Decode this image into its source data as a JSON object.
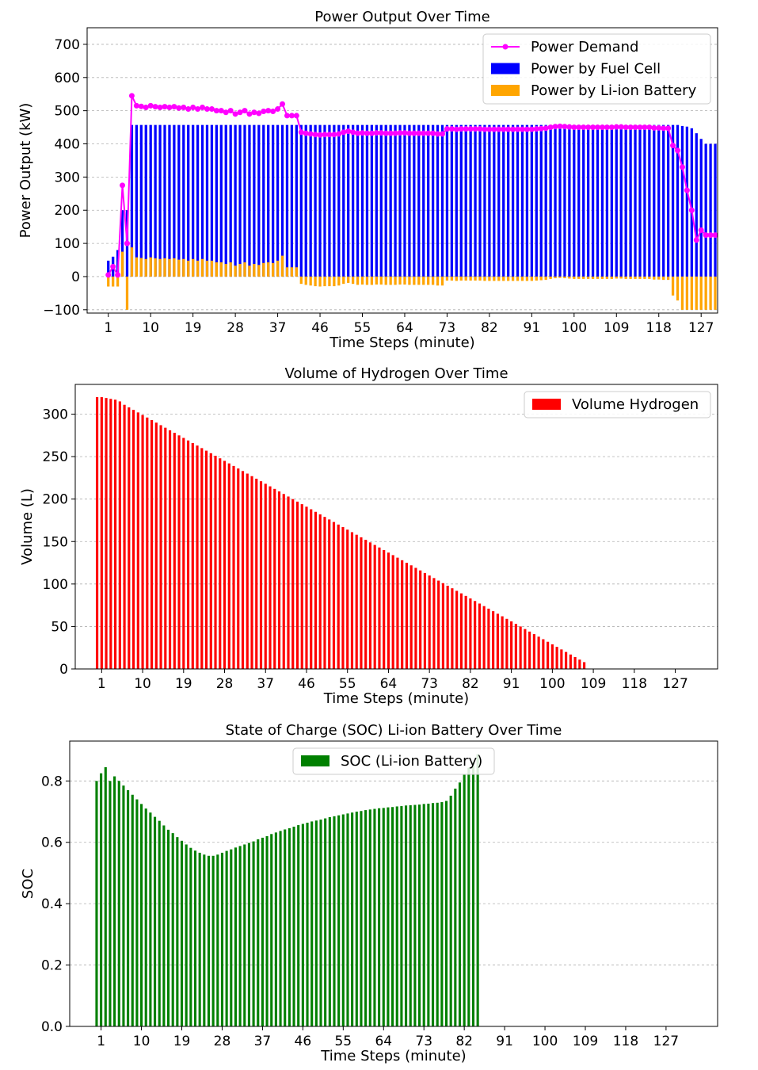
{
  "chart_data": [
    {
      "type": "bar",
      "title": "Power Output Over Time",
      "xlabel": "Time Steps (minute)",
      "ylabel": "Power Output (kW)",
      "ylim": [
        -110,
        750
      ],
      "xlim": [
        -3.5,
        130.5
      ],
      "yticks": [
        -100,
        0,
        100,
        200,
        300,
        400,
        500,
        600,
        700
      ],
      "xticks": [
        1,
        10,
        19,
        28,
        37,
        46,
        55,
        64,
        73,
        82,
        91,
        100,
        109,
        118,
        127
      ],
      "bar_x_start": 1,
      "bar_width": 0.55,
      "series": [
        {
          "name": "Power Demand",
          "kind": "line",
          "color": "#ff00ff",
          "x": [
            1,
            2,
            3,
            4,
            5,
            6,
            7,
            8,
            9,
            10,
            11,
            12,
            13,
            14,
            15,
            16,
            17,
            18,
            19,
            20,
            21,
            22,
            23,
            24,
            25,
            26,
            27,
            28,
            29,
            30,
            31,
            32,
            33,
            34,
            35,
            36,
            37,
            38,
            39,
            40,
            41,
            42,
            43,
            44,
            45,
            46,
            47,
            48,
            49,
            50,
            51,
            52,
            53,
            54,
            55,
            56,
            57,
            58,
            59,
            60,
            61,
            62,
            63,
            64,
            65,
            66,
            67,
            68,
            69,
            70,
            71,
            72,
            73,
            74,
            75,
            76,
            77,
            78,
            79,
            80,
            81,
            82,
            83,
            84,
            85,
            86,
            87,
            88,
            89,
            90,
            91,
            92,
            93,
            94,
            95,
            96,
            97,
            98,
            99,
            100,
            101,
            102,
            103,
            104,
            105,
            106,
            107,
            108,
            109,
            110,
            111,
            112,
            113,
            114,
            115,
            116,
            117,
            118,
            119,
            120,
            121,
            122,
            123,
            124,
            125,
            126,
            127,
            128,
            129,
            130
          ],
          "values": [
            5,
            30,
            5,
            275,
            100,
            545,
            515,
            513,
            510,
            515,
            512,
            510,
            512,
            510,
            512,
            508,
            510,
            505,
            510,
            505,
            510,
            505,
            505,
            500,
            500,
            495,
            500,
            490,
            495,
            500,
            490,
            495,
            492,
            498,
            500,
            498,
            505,
            520,
            485,
            485,
            485,
            435,
            432,
            430,
            428,
            427,
            428,
            428,
            428,
            430,
            435,
            438,
            435,
            432,
            433,
            432,
            432,
            433,
            433,
            432,
            432,
            432,
            433,
            433,
            432,
            432,
            432,
            432,
            432,
            432,
            430,
            430,
            445,
            445,
            444,
            445,
            445,
            445,
            445,
            445,
            444,
            444,
            444,
            444,
            444,
            444,
            444,
            444,
            444,
            444,
            444,
            445,
            446,
            447,
            450,
            452,
            453,
            452,
            451,
            450,
            450,
            450,
            450,
            450,
            450,
            450,
            450,
            450,
            451,
            451,
            450,
            450,
            450,
            450,
            450,
            450,
            448,
            448,
            447,
            447,
            395,
            380,
            330,
            260,
            200,
            110,
            140,
            125,
            125,
            125
          ]
        },
        {
          "name": "Power by Fuel Cell",
          "kind": "bar",
          "color": "#0000ff",
          "values": [
            48,
            60,
            80,
            200,
            200,
            457,
            457,
            457,
            457,
            457,
            457,
            457,
            457,
            457,
            457,
            457,
            457,
            457,
            457,
            457,
            457,
            457,
            457,
            457,
            457,
            457,
            457,
            457,
            457,
            457,
            457,
            457,
            457,
            457,
            457,
            457,
            457,
            457,
            457,
            457,
            457,
            457,
            457,
            457,
            457,
            457,
            457,
            457,
            457,
            457,
            457,
            457,
            457,
            457,
            457,
            457,
            457,
            457,
            457,
            457,
            457,
            457,
            457,
            457,
            457,
            457,
            457,
            457,
            457,
            457,
            457,
            457,
            457,
            457,
            457,
            457,
            457,
            457,
            457,
            457,
            457,
            457,
            457,
            457,
            457,
            457,
            457,
            457,
            457,
            457,
            457,
            457,
            457,
            457,
            457,
            457,
            457,
            457,
            457,
            457,
            457,
            457,
            457,
            457,
            457,
            457,
            457,
            457,
            457,
            457,
            457,
            457,
            457,
            457,
            457,
            457,
            457,
            457,
            457,
            457,
            457,
            457,
            454,
            452,
            447,
            432,
            415,
            400,
            400,
            400
          ]
        },
        {
          "name": "Power by Li-ion Battery",
          "kind": "bar",
          "color": "#ffa500",
          "values": [
            -30,
            -30,
            -30,
            75,
            -100,
            88,
            58,
            56,
            53,
            58,
            55,
            53,
            55,
            53,
            55,
            51,
            53,
            48,
            53,
            48,
            53,
            48,
            48,
            43,
            43,
            38,
            43,
            33,
            38,
            43,
            33,
            38,
            35,
            41,
            43,
            41,
            48,
            63,
            28,
            28,
            28,
            -22,
            -25,
            -27,
            -29,
            -30,
            -29,
            -29,
            -29,
            -27,
            -22,
            -19,
            -22,
            -25,
            -24,
            -25,
            -25,
            -24,
            -24,
            -25,
            -25,
            -25,
            -24,
            -24,
            -25,
            -25,
            -25,
            -25,
            -25,
            -25,
            -27,
            -27,
            -12,
            -12,
            -13,
            -12,
            -12,
            -12,
            -12,
            -12,
            -13,
            -13,
            -13,
            -13,
            -13,
            -13,
            -13,
            -13,
            -13,
            -13,
            -13,
            -12,
            -11,
            -10,
            -7,
            -5,
            -4,
            -5,
            -6,
            -7,
            -7,
            -7,
            -7,
            -7,
            -7,
            -7,
            -7,
            -7,
            -6,
            -6,
            -7,
            -7,
            -7,
            -7,
            -7,
            -7,
            -9,
            -9,
            -10,
            -10,
            -57,
            -72,
            -100,
            -100,
            -100,
            -100,
            -100,
            -100,
            -100,
            -100
          ]
        }
      ],
      "legend": "top-right"
    },
    {
      "type": "bar",
      "title": "Volume of Hydrogen Over Time",
      "xlabel": "Time Steps (minute)",
      "ylabel": "Volume (L)",
      "ylim": [
        0,
        335
      ],
      "xlim": [
        -4.8,
        136.3
      ],
      "yticks": [
        0,
        50,
        100,
        150,
        200,
        250,
        300
      ],
      "xticks": [
        1,
        10,
        19,
        28,
        37,
        46,
        55,
        64,
        73,
        82,
        91,
        100,
        109,
        118,
        127
      ],
      "bar_x_start": 0,
      "bar_width": 0.55,
      "series": [
        {
          "name": "Volume Hydrogen",
          "kind": "bar",
          "color": "#ff0000",
          "values": [
            320,
            320,
            319,
            318,
            317,
            315,
            311,
            308,
            305,
            302,
            299,
            296,
            293,
            290,
            287,
            284,
            281,
            278,
            275,
            272,
            269,
            266,
            263,
            260,
            257,
            254,
            251,
            248,
            245,
            242,
            239,
            236,
            233,
            230,
            227,
            224,
            221,
            218,
            215,
            212,
            209,
            206,
            203,
            200,
            197,
            194,
            191,
            188,
            185,
            182,
            179,
            176,
            173,
            170,
            167,
            164,
            161,
            158,
            155,
            152,
            149,
            146,
            143,
            140,
            137,
            134,
            131,
            128,
            125,
            122,
            119,
            116,
            113,
            110,
            107,
            104,
            101,
            98,
            95,
            92,
            89,
            86,
            83,
            80,
            77,
            74,
            71,
            68,
            65,
            62,
            59,
            56,
            53,
            50,
            47,
            44,
            41,
            38,
            35,
            32,
            29,
            26,
            23,
            20,
            17,
            14,
            11,
            8
          ]
        }
      ],
      "legend": "top-right"
    },
    {
      "type": "bar",
      "title": "State of Charge (SOC) Li-ion Battery Over Time",
      "xlabel": "Time Steps (minute)",
      "ylabel": "SOC",
      "ylim": [
        0,
        0.93
      ],
      "xlim": [
        -6,
        138.5
      ],
      "yticks": [
        0.0,
        0.2,
        0.4,
        0.6,
        0.8
      ],
      "yticklabels": [
        "0.0",
        "0.2",
        "0.4",
        "0.6",
        "0.8"
      ],
      "xticks": [
        1,
        10,
        19,
        28,
        37,
        46,
        55,
        64,
        73,
        82,
        91,
        100,
        109,
        118,
        127
      ],
      "bar_x_start": 0,
      "bar_width": 0.55,
      "series": [
        {
          "name": "SOC (Li-ion Battery)",
          "kind": "bar",
          "color": "#008000",
          "values": [
            0.8,
            0.825,
            0.845,
            0.8,
            0.815,
            0.8,
            0.785,
            0.77,
            0.755,
            0.74,
            0.725,
            0.71,
            0.697,
            0.683,
            0.67,
            0.655,
            0.641,
            0.63,
            0.617,
            0.605,
            0.593,
            0.582,
            0.573,
            0.566,
            0.56,
            0.556,
            0.556,
            0.56,
            0.566,
            0.572,
            0.577,
            0.583,
            0.588,
            0.593,
            0.598,
            0.603,
            0.61,
            0.615,
            0.62,
            0.627,
            0.632,
            0.637,
            0.642,
            0.646,
            0.651,
            0.656,
            0.66,
            0.664,
            0.668,
            0.671,
            0.674,
            0.678,
            0.682,
            0.685,
            0.688,
            0.691,
            0.694,
            0.697,
            0.7,
            0.702,
            0.705,
            0.707,
            0.709,
            0.711,
            0.712,
            0.714,
            0.715,
            0.717,
            0.718,
            0.72,
            0.721,
            0.722,
            0.723,
            0.725,
            0.726,
            0.728,
            0.729,
            0.731,
            0.735,
            0.752,
            0.775,
            0.795,
            0.82,
            0.843,
            0.862,
            0.887
          ]
        }
      ],
      "legend": "top-center"
    }
  ]
}
